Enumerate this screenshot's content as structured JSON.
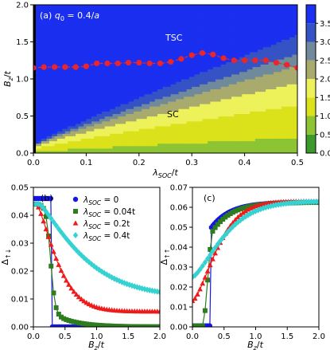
{
  "chart_data": [
    {
      "type": "heatmap",
      "panel_label": "(a)",
      "annotation": "q_0 = 0.4/a",
      "xlabel": "λ_SOC/t",
      "ylabel": "B_z/t",
      "xlim": [
        0,
        0.5
      ],
      "ylim": [
        0,
        2.0
      ],
      "xticks": [
        "0.0",
        "0.1",
        "0.2",
        "0.3",
        "0.4",
        "0.5"
      ],
      "yticks": [
        "0.0",
        "0.5",
        "1.0",
        "1.5",
        "2.0"
      ],
      "region_labels": [
        "TSC",
        "SC"
      ],
      "colorbar": {
        "ticks": [
          "0.0",
          "0.5",
          "1.0",
          "1.5",
          "2.0",
          "2.5",
          "3.0",
          "3.5"
        ],
        "vmin": 0,
        "vmax": 4,
        "levels": [
          "#3c9a2a",
          "#8cc434",
          "#dbe21b",
          "#eef25a",
          "#a8ab6d",
          "#708a9b",
          "#3553c4",
          "#1a2ff0"
        ]
      },
      "boundary": {
        "marker_color": "#e8262b",
        "x": [
          0.0,
          0.02,
          0.04,
          0.06,
          0.08,
          0.1,
          0.12,
          0.14,
          0.16,
          0.18,
          0.2,
          0.22,
          0.24,
          0.26,
          0.28,
          0.3,
          0.32,
          0.34,
          0.36,
          0.38,
          0.4,
          0.42,
          0.44,
          0.46,
          0.48,
          0.5
        ],
        "y": [
          1.15,
          1.16,
          1.16,
          1.16,
          1.16,
          1.17,
          1.21,
          1.21,
          1.21,
          1.22,
          1.22,
          1.21,
          1.21,
          1.23,
          1.27,
          1.32,
          1.35,
          1.33,
          1.28,
          1.25,
          1.25,
          1.25,
          1.25,
          1.22,
          1.19,
          1.15
        ]
      }
    },
    {
      "type": "line",
      "panel_label": "(b)",
      "xlabel": "B_z/t",
      "ylabel": "Δ↑↓",
      "xlim": [
        0,
        2.0
      ],
      "ylim": [
        0,
        0.05
      ],
      "xticks": [
        "0.0",
        "0.5",
        "1.0",
        "1.5",
        "2.0"
      ],
      "yticks": [
        "0.00",
        "0.01",
        "0.02",
        "0.03",
        "0.04",
        "0.05"
      ],
      "legend_position": "top-right",
      "series": [
        {
          "name": "λ_SOC = 0",
          "color": "#1515e6",
          "marker": "circle"
        },
        {
          "name": "λ_SOC = 0.04t",
          "color": "#2d7d1e",
          "marker": "square"
        },
        {
          "name": "λ_SOC = 0.2t",
          "color": "#ee1b1b",
          "marker": "triangle"
        },
        {
          "name": "λ_SOC = 0.4t",
          "color": "#36d1d1",
          "marker": "diamond"
        }
      ]
    },
    {
      "type": "line",
      "panel_label": "(c)",
      "xlabel": "B_z/t",
      "ylabel": "Δ↑↑",
      "xlim": [
        0,
        2.0
      ],
      "ylim": [
        0,
        0.07
      ],
      "xticks": [
        "0.0",
        "0.5",
        "1.0",
        "1.5",
        "2.0"
      ],
      "yticks": [
        "0.00",
        "0.01",
        "0.02",
        "0.03",
        "0.04",
        "0.05",
        "0.06",
        "0.07"
      ],
      "series": [
        {
          "color": "#1515e6",
          "marker": "circle"
        },
        {
          "color": "#2d7d1e",
          "marker": "square"
        },
        {
          "color": "#ee1b1b",
          "marker": "triangle"
        },
        {
          "color": "#36d1d1",
          "marker": "diamond"
        }
      ]
    }
  ]
}
